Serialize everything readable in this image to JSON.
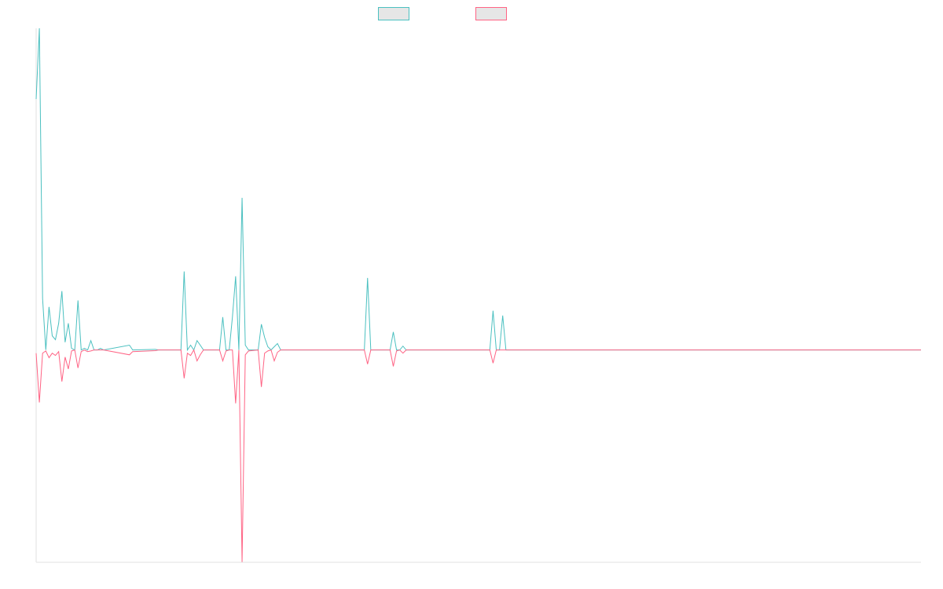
{
  "chart_data": {
    "type": "line",
    "x": [
      0,
      1,
      2,
      3,
      4,
      5,
      6,
      7,
      8,
      9,
      10,
      11,
      12,
      13,
      14,
      15,
      16,
      17,
      18,
      19,
      20,
      21,
      29,
      30,
      37,
      38,
      45,
      46,
      47,
      48,
      49,
      50,
      51,
      52,
      57,
      58,
      59,
      60,
      61,
      62,
      63,
      64,
      65,
      66,
      69,
      70,
      71,
      72,
      73,
      74,
      75,
      76,
      102,
      103,
      104,
      110,
      111,
      112,
      113,
      114,
      115,
      141,
      142,
      143,
      144,
      145,
      146,
      275
    ],
    "xlim": [
      0,
      275
    ],
    "ylim": [
      -66,
      100
    ],
    "series": [
      {
        "color": "#4bc0c0",
        "values": [
          78,
          100,
          16,
          0,
          13.4,
          4.4,
          3.2,
          8.3,
          18.3,
          2.4,
          8.3,
          0.5,
          0,
          15.4,
          0,
          0.5,
          0,
          2.9,
          0,
          0,
          0.5,
          0,
          1.5,
          0,
          0.2,
          0,
          0,
          24.4,
          0,
          1.5,
          0,
          2.9,
          1.5,
          0,
          0,
          10.2,
          0,
          0,
          10.2,
          22.9,
          0,
          47.3,
          1.5,
          0,
          0,
          8,
          3.9,
          1,
          0,
          1,
          2,
          0,
          0,
          22.4,
          0,
          0,
          5.6,
          0,
          0,
          1.2,
          0,
          0,
          12.2,
          0,
          0,
          10.7,
          0,
          0
        ]
      },
      {
        "color": "#ff6384",
        "values": [
          -1,
          -16.3,
          -1,
          -0.3,
          -2.4,
          -1,
          -1.7,
          -0.5,
          -9.8,
          -2.2,
          -5.9,
          -0.3,
          0,
          -5.6,
          -0.5,
          0,
          -0.5,
          -0.3,
          0,
          0,
          0,
          0,
          -1.5,
          -0.5,
          -0.2,
          0,
          0,
          -8.8,
          -1,
          -1.7,
          0,
          -3.4,
          -1.5,
          0,
          0,
          -3.4,
          -0.3,
          0,
          0,
          -16.6,
          0,
          -65.9,
          -1.5,
          -0.3,
          0,
          -11.5,
          -1,
          -0.3,
          0,
          -3.4,
          -0.7,
          0,
          0,
          -4.4,
          0,
          0,
          -5.1,
          -0.3,
          0,
          -1,
          0,
          0,
          -4.1,
          0,
          0,
          0,
          0,
          0
        ]
      }
    ]
  }
}
